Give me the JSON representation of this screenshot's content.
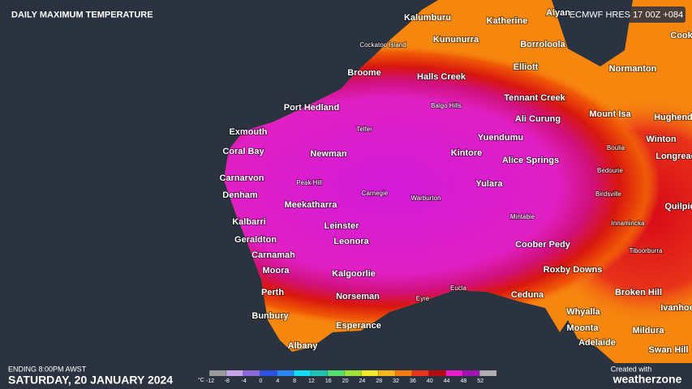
{
  "header": {
    "title": "DAILY MAXIMUM TEMPERATURE",
    "model": "ECMWF HRES 17 00Z +084"
  },
  "footer": {
    "ending": "ENDING 8:00PM AWST",
    "date": "SATURDAY, 20 JANUARY 2024",
    "created": "Created with",
    "brand": "weatherzone"
  },
  "legend": {
    "unit": "°C",
    "ticks": [
      -12,
      -8,
      -4,
      0,
      4,
      8,
      12,
      16,
      20,
      24,
      28,
      32,
      36,
      40,
      44,
      48,
      52
    ],
    "colors": [
      "#9a9a9a",
      "#c9a3ea",
      "#8a6ad8",
      "#2f4fe0",
      "#2a86f0",
      "#14dcef",
      "#22c2b2",
      "#58de6c",
      "#9ee23c",
      "#f2ea2a",
      "#f8b81a",
      "#f57d10",
      "#e8321a",
      "#b80a12",
      "#e81ec8",
      "#a015b0",
      "#b0b0b0"
    ]
  },
  "places": {
    "major": [
      "Kalumburu",
      "Katherine",
      "Alyan",
      "Kununurra",
      "Borroloola",
      "Cook",
      "Broome",
      "Halls Creek",
      "Elliott",
      "Normanton",
      "Port Hedland",
      "Tennant Creek",
      "Mount Isa",
      "Hughende",
      "Ali Curung",
      "Exmouth",
      "Yuendumu",
      "Winton",
      "Coral Bay",
      "Newman",
      "Kintore",
      "Longreac",
      "Alice Springs",
      "Carnarvon",
      "Yulara",
      "Denham",
      "Meekatharra",
      "Quilpie",
      "Kalbarri",
      "Leinster",
      "Geraldton",
      "Leonora",
      "Coober Pedy",
      "Carnamah",
      "Moora",
      "Kalgoorlie",
      "Roxby Downs",
      "Perth",
      "Norseman",
      "Ceduna",
      "Broken Hill",
      "Ivanhoe",
      "Whyalla",
      "Bunbury",
      "Esperance",
      "Moonta",
      "Mildura",
      "Adelaide",
      "Swan Hill",
      "Albany"
    ],
    "minor": [
      "Cockatoo Island",
      "Balgo Hills",
      "Telfer",
      "Boulia",
      "Bedourie",
      "Peak Hill",
      "Carnegie",
      "Warburton",
      "Birdsville",
      "Mintabie",
      "Innamincka",
      "Tiboorburra",
      "Eucla",
      "Eyre"
    ]
  }
}
